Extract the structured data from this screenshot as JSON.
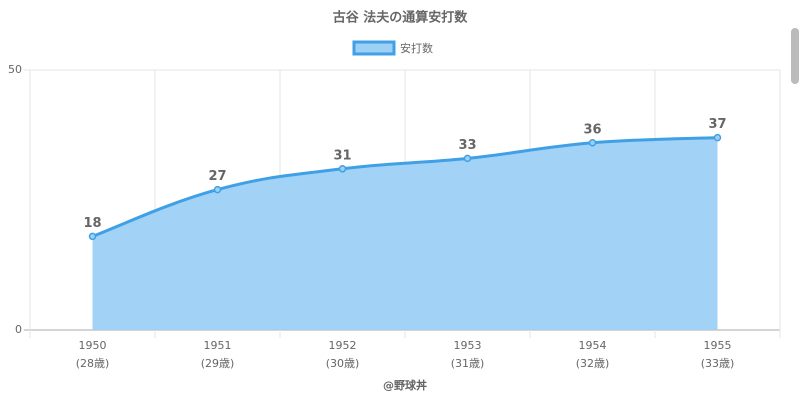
{
  "chart_data": {
    "type": "area",
    "title": "古谷 法夫の通算安打数",
    "footer": "@野球丼",
    "categories": [
      [
        "1950",
        "(28歳)"
      ],
      [
        "1951",
        "(29歳)"
      ],
      [
        "1952",
        "(30歳)"
      ],
      [
        "1953",
        "(31歳)"
      ],
      [
        "1954",
        "(32歳)"
      ],
      [
        "1955",
        "(33歳)"
      ]
    ],
    "series": [
      {
        "name": "安打数",
        "color": "#3fa0e6",
        "fill": "#9dd0f5",
        "values": [
          18,
          27,
          31,
          33,
          36,
          37
        ]
      }
    ],
    "ylim": [
      0,
      50
    ],
    "yticks": [
      0,
      50
    ],
    "grid": true,
    "legend": "top"
  }
}
